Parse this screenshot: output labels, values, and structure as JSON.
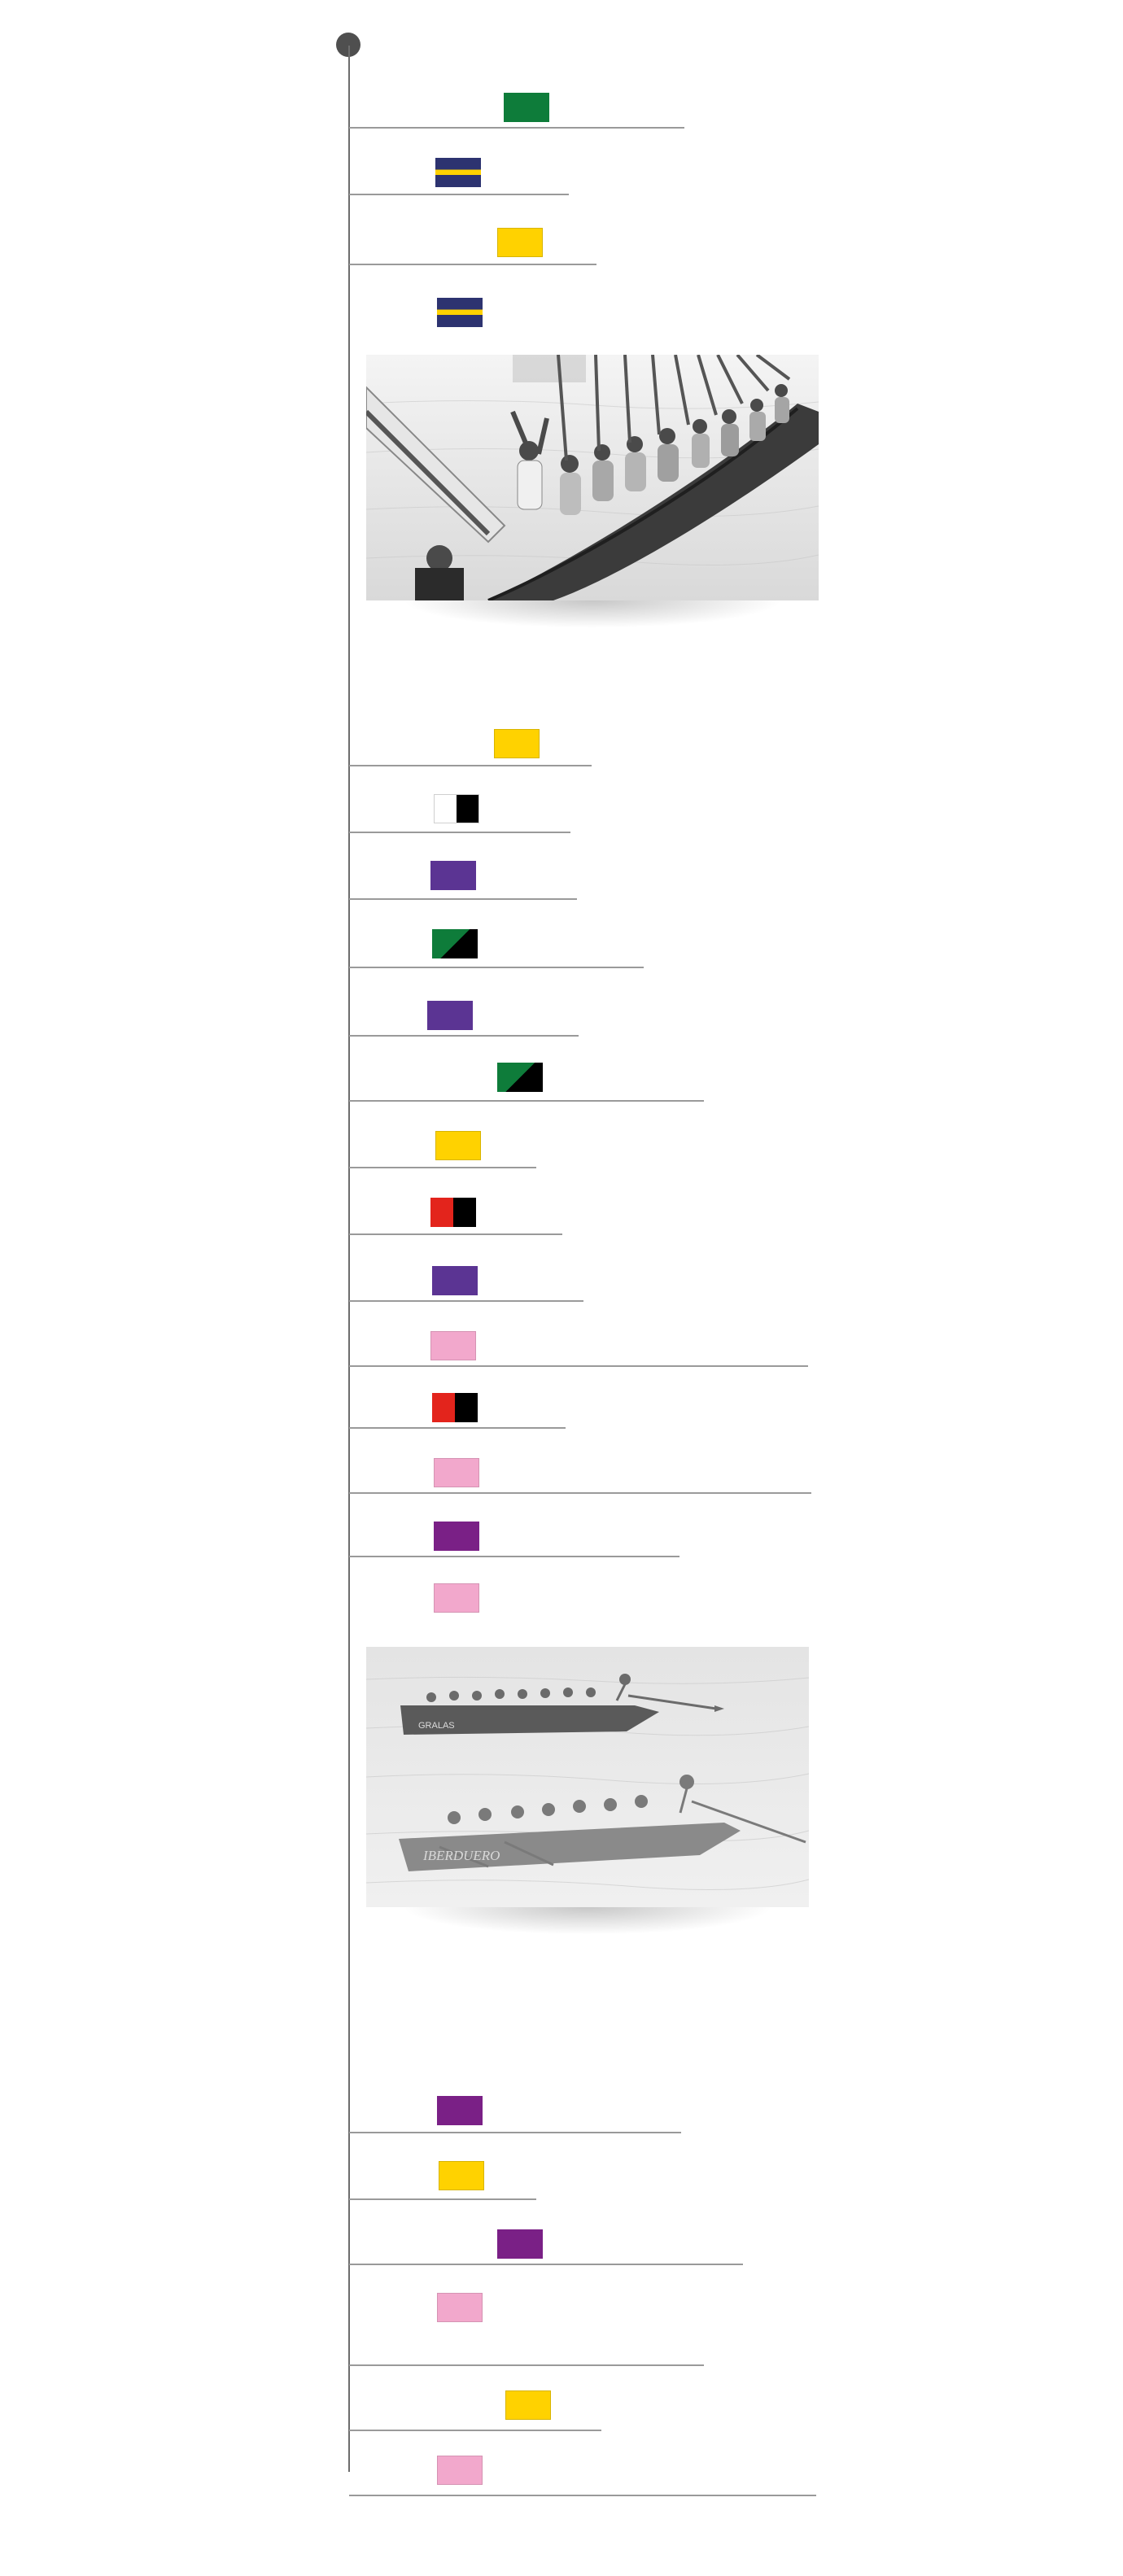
{
  "timeline": {
    "colors": {
      "green": "#0e7c3a",
      "yellow": "#ffd200",
      "navy": "#2d3370",
      "violet": "#5b3493",
      "purple": "#7a2086",
      "pink": "#f2a8cc",
      "red": "#e3241c",
      "black": "#000000",
      "white": "#ffffff"
    },
    "entries": [
      {
        "flag": "green"
      },
      {
        "flag": "navy-yellow-stripe"
      },
      {
        "flag": "yellow"
      },
      {
        "flag": "navy-yellow-stripe"
      },
      {
        "flag": "yellow"
      },
      {
        "flag": "white-black"
      },
      {
        "flag": "violet"
      },
      {
        "flag": "green-black-diagonal"
      },
      {
        "flag": "violet"
      },
      {
        "flag": "green-black-diagonal"
      },
      {
        "flag": "yellow"
      },
      {
        "flag": "red-black"
      },
      {
        "flag": "violet"
      },
      {
        "flag": "pink"
      },
      {
        "flag": "red-black"
      },
      {
        "flag": "pink"
      },
      {
        "flag": "purple"
      },
      {
        "flag": "pink"
      },
      {
        "flag": "purple"
      },
      {
        "flag": "yellow"
      },
      {
        "flag": "purple"
      },
      {
        "flag": "pink"
      },
      {
        "flag": "yellow"
      },
      {
        "flag": "pink"
      }
    ],
    "photos": [
      {
        "subject": "rowing crew celebrating with oars raised"
      },
      {
        "subject": "two rowing boats racing",
        "boat_text_1": "GRALAS",
        "boat_text_2": "IBERDUERO"
      }
    ]
  }
}
